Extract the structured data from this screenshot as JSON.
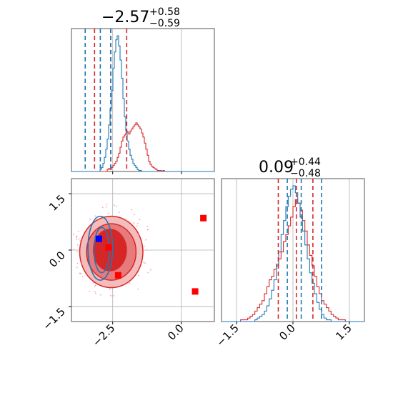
{
  "chart_data": {
    "type": "corner",
    "colors": {
      "red": "#d62728",
      "blue": "#1f77b4",
      "truth_red": "#ff0000",
      "truth_blue": "#0000ff",
      "grid": "#b0b0b0"
    },
    "param1_title": {
      "main": "−2.57",
      "sup": "+0.58",
      "sub": "−0.59"
    },
    "param2_title": {
      "main": "0.09",
      "sup": "+0.44",
      "sub": "−0.48"
    },
    "x1_range": [
      -4.0,
      1.2
    ],
    "x2_range": [
      -1.9,
      1.9
    ],
    "x1_ticks": [
      {
        "v": -2.5,
        "label": "−2.5"
      },
      {
        "v": 0.0,
        "label": "0.0"
      }
    ],
    "x2_ticks": [
      {
        "v": -1.5,
        "label": "−1.5"
      },
      {
        "v": 0.0,
        "label": "0.0"
      },
      {
        "v": 1.5,
        "label": "1.5"
      }
    ],
    "param1_quantiles": {
      "red": [
        -3.16,
        -2.57,
        -1.99
      ],
      "blue": [
        -3.5,
        -2.95,
        -2.57
      ]
    },
    "param2_quantiles": {
      "red": [
        -0.39,
        0.09,
        0.53
      ],
      "blue": [
        -0.15,
        0.22,
        0.76
      ]
    },
    "hist1": {
      "red": {
        "x0": -4.0,
        "x1": 1.2,
        "counts": [
          0,
          0,
          0,
          0,
          0,
          0,
          0,
          0,
          0,
          0,
          0,
          0,
          0,
          0,
          0,
          0,
          0,
          0,
          0,
          0,
          0,
          0,
          0,
          0,
          0,
          2,
          3,
          2,
          4,
          6,
          8,
          10,
          14,
          18,
          24,
          30,
          34,
          36,
          38,
          39,
          37,
          40,
          42,
          44,
          46,
          48,
          46,
          44,
          42,
          38,
          34,
          28,
          22,
          16,
          10,
          7,
          5,
          4,
          3,
          2,
          1,
          1,
          1,
          0,
          1,
          0,
          0,
          0,
          0,
          0,
          0,
          0,
          0,
          0,
          0,
          0,
          0,
          0,
          0,
          0,
          0,
          0,
          0,
          0,
          0,
          0,
          0,
          0,
          0,
          0,
          0,
          0,
          0,
          0,
          0,
          0,
          0,
          0,
          0,
          0
        ]
      },
      "blue": {
        "x0": -4.0,
        "x1": 1.2,
        "counts": [
          0,
          0,
          0,
          0,
          0,
          0,
          0,
          0,
          0,
          0,
          0,
          0,
          0,
          0,
          0,
          0,
          0,
          0,
          0,
          0,
          2,
          4,
          8,
          14,
          22,
          32,
          46,
          62,
          80,
          102,
          118,
          130,
          134,
          124,
          110,
          92,
          72,
          54,
          40,
          30,
          22,
          16,
          12,
          8,
          6,
          4,
          2,
          1,
          1,
          0,
          0,
          0,
          0,
          0,
          0,
          0,
          0,
          0,
          0,
          0,
          0,
          0,
          0,
          0,
          0,
          0,
          0,
          0,
          0,
          0,
          0,
          0,
          0,
          0,
          0,
          0,
          0,
          0,
          0,
          0,
          0,
          0,
          0,
          0,
          0,
          0,
          0,
          0,
          0,
          0,
          0,
          0,
          0,
          0,
          0,
          0,
          0,
          0,
          0,
          0
        ]
      }
    },
    "hist2": {
      "red": {
        "x0": -1.9,
        "x1": 1.9,
        "counts": [
          0,
          0,
          0,
          0,
          0,
          0,
          0,
          0,
          1,
          1,
          1,
          2,
          3,
          4,
          6,
          8,
          10,
          12,
          16,
          20,
          24,
          26,
          30,
          33,
          36,
          40,
          46,
          50,
          55,
          60,
          66,
          70,
          68,
          64,
          58,
          52,
          44,
          38,
          32,
          26,
          20,
          16,
          12,
          10,
          8,
          6,
          4,
          3,
          2,
          1,
          1,
          1,
          0,
          0,
          0,
          0,
          0,
          0,
          0,
          0
        ]
      },
      "blue": {
        "x0": -1.9,
        "x1": 1.9,
        "counts": [
          0,
          0,
          0,
          0,
          0,
          0,
          0,
          0,
          0,
          0,
          0,
          0,
          0,
          0,
          1,
          2,
          3,
          4,
          6,
          9,
          13,
          18,
          24,
          32,
          40,
          50,
          58,
          66,
          72,
          76,
          78,
          74,
          68,
          60,
          52,
          44,
          36,
          28,
          22,
          16,
          11,
          7,
          4,
          2,
          1,
          1,
          0,
          0,
          0,
          0,
          0,
          0,
          0,
          0,
          0,
          0,
          0,
          0,
          0,
          0
        ]
      }
    },
    "truth_points": [
      {
        "x": -3.0,
        "y": 0.3,
        "color": "blue"
      },
      {
        "x": -2.65,
        "y": 0.07,
        "color": "red"
      },
      {
        "x": -2.3,
        "y": -0.67,
        "color": "red"
      },
      {
        "x": 0.5,
        "y": -1.1,
        "color": "red"
      },
      {
        "x": 0.8,
        "y": 0.85,
        "color": "red"
      }
    ],
    "red_contours": [
      {
        "cx": -2.55,
        "cy": -0.05,
        "rx": 1.15,
        "ry": 0.95,
        "fill": "#f5bcbc"
      },
      {
        "cx": -2.55,
        "cy": -0.05,
        "rx": 0.9,
        "ry": 0.75,
        "fill": "#e77a7a"
      },
      {
        "cx": -2.6,
        "cy": 0.0,
        "rx": 0.6,
        "ry": 0.55,
        "fill": "#d62728"
      }
    ],
    "blue_contours": [
      {
        "cx": -2.95,
        "cy": 0.05,
        "rx": 0.45,
        "ry": 0.85
      },
      {
        "cx": -2.9,
        "cy": 0.0,
        "rx": 0.28,
        "ry": 0.6
      }
    ]
  }
}
